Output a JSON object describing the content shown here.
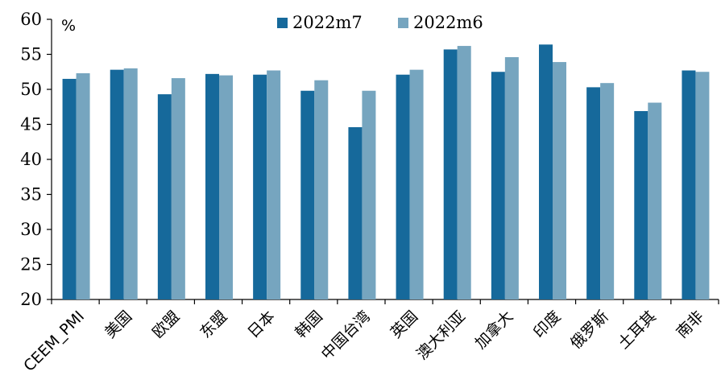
{
  "chart_data": {
    "type": "bar",
    "unit": "%",
    "categories": [
      "CEEM_PMI",
      "美国",
      "欧盟",
      "东盟",
      "日本",
      "韩国",
      "中国台湾",
      "英国",
      "澳大利亚",
      "加拿大",
      "印度",
      "俄罗斯",
      "土耳其",
      "南非"
    ],
    "series": [
      {
        "name": "2022m7",
        "color": "#16699b",
        "values": [
          51.5,
          52.8,
          49.3,
          52.2,
          52.1,
          49.8,
          44.6,
          52.1,
          55.7,
          52.5,
          56.4,
          50.3,
          46.9,
          52.7
        ]
      },
      {
        "name": "2022m6",
        "color": "#76a5bf",
        "values": [
          52.3,
          53.0,
          51.6,
          52.0,
          52.7,
          51.3,
          49.8,
          52.8,
          56.2,
          54.6,
          53.9,
          50.9,
          48.1,
          52.5
        ]
      }
    ],
    "yticks": [
      20,
      25,
      30,
      35,
      40,
      45,
      50,
      55,
      60
    ],
    "ylim": [
      20,
      60
    ],
    "grid": false,
    "legend_position": "top-center"
  }
}
